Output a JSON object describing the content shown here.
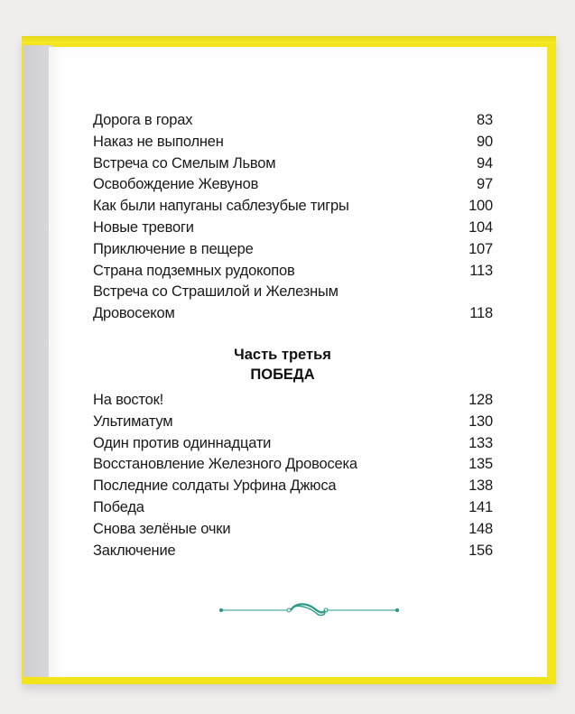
{
  "colors": {
    "cover": "#f2e51c",
    "ornament": "#2a9a86",
    "text": "#1a1a1a"
  },
  "toc_part2": [
    {
      "title": "Дорога в горах",
      "page": "83"
    },
    {
      "title": "Наказ не выполнен",
      "page": "90"
    },
    {
      "title": "Встреча со Смелым Львом",
      "page": "94"
    },
    {
      "title": "Освобождение Жевунов",
      "page": "97"
    },
    {
      "title": "Как были напуганы саблезубые тигры",
      "page": "100"
    },
    {
      "title": "Новые тревоги",
      "page": "104"
    },
    {
      "title": "Приключение в пещере",
      "page": "107"
    },
    {
      "title": "Страна подземных рудокопов",
      "page": "113"
    },
    {
      "title": "Встреча со Страшилой и Железным",
      "page": ""
    },
    {
      "title": "Дровосеком",
      "page": "118"
    }
  ],
  "part3": {
    "label": "Часть третья",
    "name": "ПОБЕДА"
  },
  "toc_part3": [
    {
      "title": "На восток!",
      "page": "128"
    },
    {
      "title": "Ультиматум",
      "page": "130"
    },
    {
      "title": "Один против одиннадцати",
      "page": "133"
    },
    {
      "title": "Восстановление Железного Дровосека",
      "page": "135"
    },
    {
      "title": "Последние солдаты Урфина Джюса",
      "page": "138"
    },
    {
      "title": "Победа",
      "page": "141"
    },
    {
      "title": "Снова зелёные очки",
      "page": "148"
    },
    {
      "title": "Заключение",
      "page": "156"
    }
  ],
  "ornament_icon": "flourish-divider-icon"
}
